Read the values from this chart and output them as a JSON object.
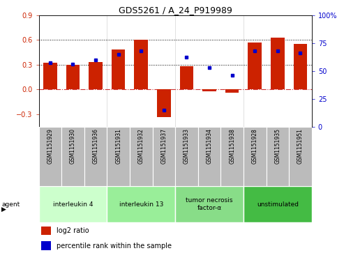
{
  "title": "GDS5261 / A_24_P919989",
  "samples": [
    "GSM1151929",
    "GSM1151930",
    "GSM1151936",
    "GSM1151931",
    "GSM1151932",
    "GSM1151937",
    "GSM1151933",
    "GSM1151934",
    "GSM1151938",
    "GSM1151928",
    "GSM1151935",
    "GSM1151951"
  ],
  "log2_ratio": [
    0.32,
    0.3,
    0.33,
    0.48,
    0.6,
    -0.34,
    0.28,
    -0.02,
    -0.04,
    0.57,
    0.63,
    0.55
  ],
  "percentile": [
    57,
    56,
    60,
    65,
    68,
    15,
    62,
    53,
    46,
    68,
    68,
    66
  ],
  "agents": [
    {
      "label": "interleukin 4",
      "start": 0,
      "end": 3,
      "color": "#ccffcc"
    },
    {
      "label": "interleukin 13",
      "start": 3,
      "end": 6,
      "color": "#99ee99"
    },
    {
      "label": "tumor necrosis\nfactor-α",
      "start": 6,
      "end": 9,
      "color": "#88dd88"
    },
    {
      "label": "unstimulated",
      "start": 9,
      "end": 12,
      "color": "#44bb44"
    }
  ],
  "ylim_left": [
    -0.45,
    0.9
  ],
  "ylim_right": [
    0,
    100
  ],
  "yticks_left": [
    -0.3,
    0.0,
    0.3,
    0.6,
    0.9
  ],
  "yticks_right": [
    0,
    25,
    50,
    75,
    100
  ],
  "bar_color": "#cc2200",
  "point_color": "#0000cc",
  "hline_color": "#cc3333",
  "dotted_vals": [
    0.3,
    0.6
  ],
  "background_color": "#ffffff",
  "agent_label_color": "#000000",
  "sample_box_color": "#bbbbbb"
}
